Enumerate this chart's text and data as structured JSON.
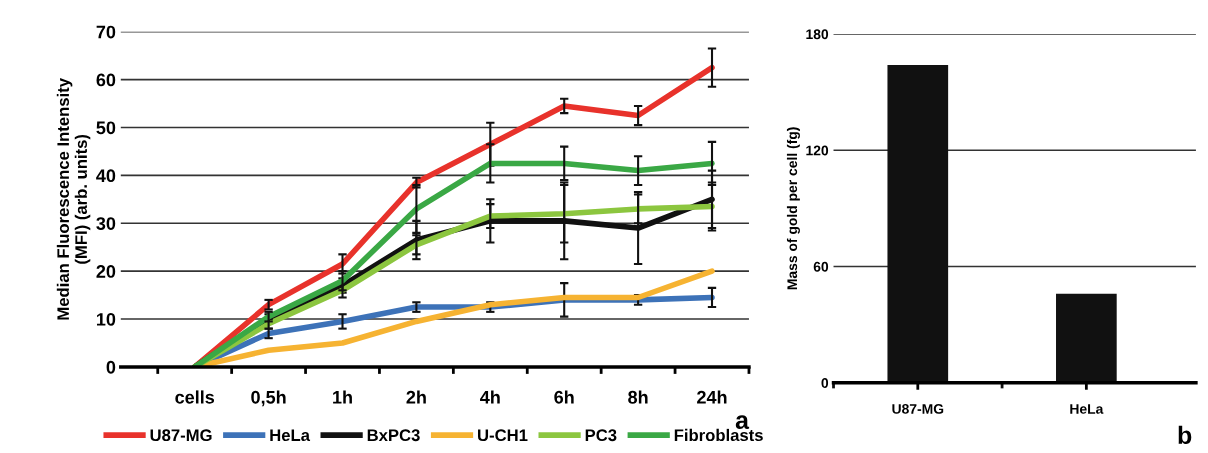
{
  "chart_data": [
    {
      "type": "line",
      "ylabel": "Median Fluorescence Intensity\n(MFI) (arb. units)",
      "categories": [
        "cells",
        "0,5h",
        "1h",
        "2h",
        "4h",
        "6h",
        "8h",
        "24h"
      ],
      "ylim": [
        0,
        70
      ],
      "yticks": [
        0,
        10,
        20,
        30,
        40,
        50,
        60,
        70
      ],
      "grid": "y",
      "legend": "bottom",
      "marker": "none",
      "line_style": "solid",
      "annotations": [
        "a"
      ],
      "series": [
        {
          "name": "U87-MG",
          "color": "#e8322b",
          "values": [
            0,
            13,
            21.5,
            38.5,
            46.5,
            54.5,
            52.5,
            62.5
          ],
          "errors": [
            null,
            1,
            2,
            1,
            4.5,
            1.5,
            2,
            4
          ]
        },
        {
          "name": "HeLa",
          "color": "#3d72b8",
          "values": [
            0,
            7,
            9.5,
            12.5,
            12.5,
            14,
            14,
            14.5
          ],
          "errors": [
            null,
            1,
            1.5,
            1,
            1,
            3.5,
            1,
            2
          ]
        },
        {
          "name": "BxPC3",
          "color": "#111111",
          "values": [
            0,
            10,
            17,
            26.5,
            30.5,
            30.5,
            29,
            35
          ],
          "errors": [
            null,
            1,
            1.5,
            4,
            4.5,
            8,
            7.5,
            6
          ]
        },
        {
          "name": "U-CH1",
          "color": "#f6b332",
          "values": [
            0,
            3.5,
            5,
            9.5,
            13,
            14.5,
            14.5,
            20
          ],
          "errors": [
            null,
            null,
            null,
            null,
            null,
            null,
            null,
            null
          ]
        },
        {
          "name": "PC3",
          "color": "#8cc63f",
          "values": [
            0,
            9,
            16,
            25.5,
            31.5,
            32,
            33,
            33.5
          ],
          "errors": [
            null,
            1,
            1.5,
            2,
            2.5,
            6,
            3,
            5
          ]
        },
        {
          "name": "Fibroblasts",
          "color": "#3aa845",
          "values": [
            0,
            10.5,
            18,
            33,
            42.5,
            42.5,
            41,
            42.5
          ],
          "errors": [
            null,
            1,
            2,
            5,
            4,
            3.5,
            3,
            4.5
          ]
        }
      ]
    },
    {
      "type": "bar",
      "ylabel": "Mass of gold per cell (fg)",
      "categories": [
        "U87-MG",
        "HeLa"
      ],
      "values": [
        164,
        46
      ],
      "color": "#111111",
      "ylim": [
        0,
        180
      ],
      "yticks": [
        0,
        60,
        120,
        180
      ],
      "grid": "y",
      "annotations": [
        "b"
      ]
    }
  ]
}
